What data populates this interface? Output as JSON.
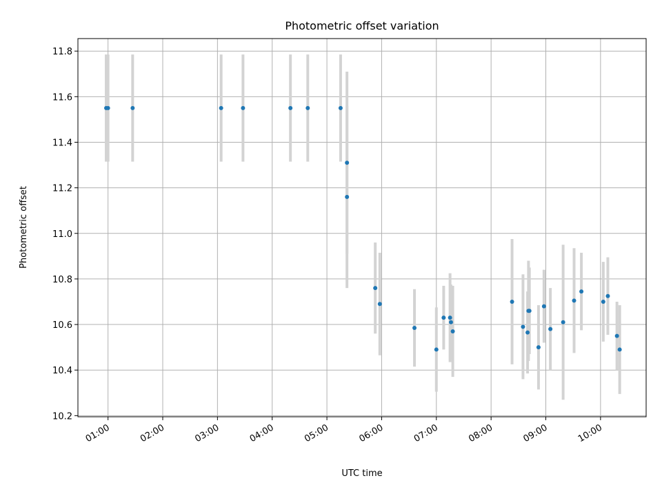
{
  "chart_data": {
    "type": "scatter",
    "title": "Photometric offset variation",
    "xlabel": "UTC time",
    "ylabel": "Photometric offset",
    "x_unit": "time (HH:MM)",
    "xlim": [
      "00:27",
      "10:50"
    ],
    "ylim": [
      10.195,
      11.855
    ],
    "x_ticks": [
      "01:00",
      "02:00",
      "03:00",
      "04:00",
      "05:00",
      "06:00",
      "07:00",
      "08:00",
      "09:00",
      "10:00"
    ],
    "y_ticks": [
      10.2,
      10.4,
      10.6,
      10.8,
      11.0,
      11.2,
      11.4,
      11.6,
      11.8
    ],
    "y_tick_labels": [
      "10.2",
      "10.4",
      "10.6",
      "10.8",
      "11.0",
      "11.2",
      "11.4",
      "11.6",
      "11.8"
    ],
    "grid": true,
    "point_color": "#1f77b4",
    "errorbar_color": "#d3d3d3",
    "points": [
      {
        "x": "00:58",
        "y": 11.55,
        "err": 0.235
      },
      {
        "x": "01:00",
        "y": 11.55,
        "err": 0.235
      },
      {
        "x": "01:27",
        "y": 11.55,
        "err": 0.235
      },
      {
        "x": "03:04",
        "y": 11.55,
        "err": 0.235
      },
      {
        "x": "03:28",
        "y": 11.55,
        "err": 0.235
      },
      {
        "x": "04:20",
        "y": 11.55,
        "err": 0.235
      },
      {
        "x": "04:39",
        "y": 11.55,
        "err": 0.235
      },
      {
        "x": "05:15",
        "y": 11.55,
        "err": 0.235
      },
      {
        "x": "05:22",
        "y": 11.31,
        "err": 0.4
      },
      {
        "x": "05:22",
        "y": 11.16,
        "err": 0.4
      },
      {
        "x": "05:53",
        "y": 10.76,
        "err": 0.2
      },
      {
        "x": "05:58",
        "y": 10.69,
        "err": 0.225
      },
      {
        "x": "06:36",
        "y": 10.585,
        "err": 0.17
      },
      {
        "x": "07:00",
        "y": 10.49,
        "err": 0.185
      },
      {
        "x": "07:08",
        "y": 10.63,
        "err": 0.14
      },
      {
        "x": "07:15",
        "y": 10.63,
        "err": 0.195
      },
      {
        "x": "07:16",
        "y": 10.61,
        "err": 0.165
      },
      {
        "x": "07:18",
        "y": 10.57,
        "err": 0.2
      },
      {
        "x": "08:23",
        "y": 10.7,
        "err": 0.275
      },
      {
        "x": "08:35",
        "y": 10.59,
        "err": 0.23
      },
      {
        "x": "08:40",
        "y": 10.565,
        "err": 0.18
      },
      {
        "x": "08:41",
        "y": 10.66,
        "err": 0.22
      },
      {
        "x": "08:42",
        "y": 10.66,
        "err": 0.19
      },
      {
        "x": "08:52",
        "y": 10.5,
        "err": 0.185
      },
      {
        "x": "08:58",
        "y": 10.68,
        "err": 0.16
      },
      {
        "x": "09:05",
        "y": 10.58,
        "err": 0.18
      },
      {
        "x": "09:19",
        "y": 10.61,
        "err": 0.34
      },
      {
        "x": "09:31",
        "y": 10.705,
        "err": 0.23
      },
      {
        "x": "09:39",
        "y": 10.745,
        "err": 0.17
      },
      {
        "x": "10:03",
        "y": 10.7,
        "err": 0.175
      },
      {
        "x": "10:08",
        "y": 10.725,
        "err": 0.17
      },
      {
        "x": "10:18",
        "y": 10.55,
        "err": 0.15
      },
      {
        "x": "10:21",
        "y": 10.49,
        "err": 0.195
      }
    ]
  }
}
